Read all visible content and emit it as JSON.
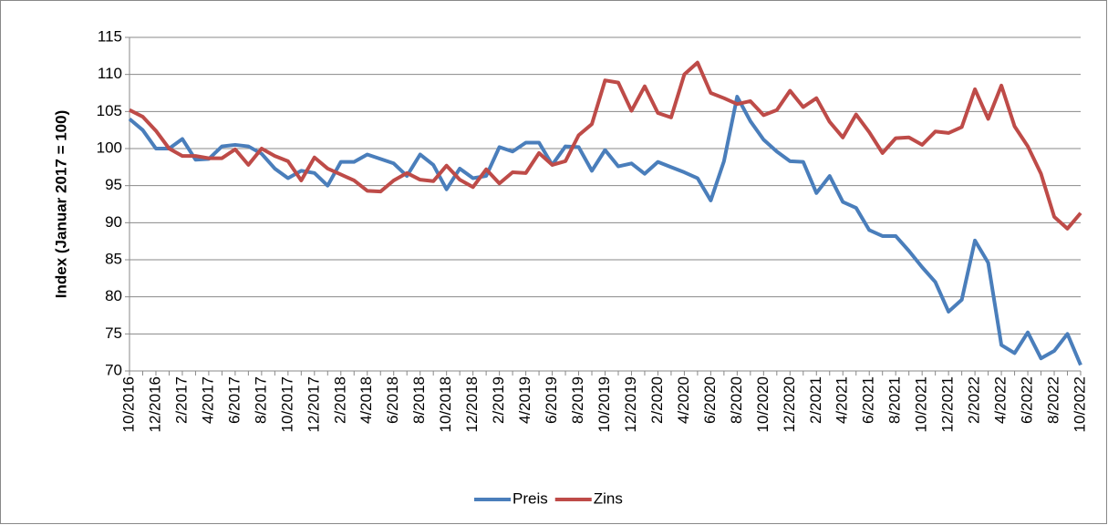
{
  "chart_data": {
    "type": "line",
    "y_label": "Index (Januar 2017 = 100)",
    "categories": [
      "10/2016",
      null,
      "12/2016",
      null,
      "2/2017",
      null,
      "4/2017",
      null,
      "6/2017",
      null,
      "8/2017",
      null,
      "10/2017",
      null,
      "12/2017",
      null,
      "2/2018",
      null,
      "4/2018",
      null,
      "6/2018",
      null,
      "8/2018",
      null,
      "10/2018",
      null,
      "12/2018",
      null,
      "2/2019",
      null,
      "4/2019",
      null,
      "6/2019",
      null,
      "8/2019",
      null,
      "10/2019",
      null,
      "12/2019",
      null,
      "2/2020",
      null,
      "4/2020",
      null,
      "6/2020",
      null,
      "8/2020",
      null,
      "10/2020",
      null,
      "12/2020",
      null,
      "2/2021",
      null,
      "4/2021",
      null,
      "6/2021",
      null,
      "8/2021",
      null,
      "10/2021",
      null,
      "12/2021",
      null,
      "2/2022",
      null,
      "4/2022",
      null,
      "6/2022",
      null,
      "8/2022",
      null,
      "10/2022"
    ],
    "series": [
      {
        "name": "Preis",
        "color": "#4a7ebb",
        "values": [
          104,
          102.5,
          100,
          100,
          101.3,
          98.5,
          98.6,
          100.3,
          100.5,
          100.3,
          99.3,
          97.3,
          96,
          97,
          96.7,
          95,
          98.2,
          98.2,
          99.2,
          98.6,
          98,
          96.3,
          99.2,
          97.8,
          94.5,
          97.3,
          96,
          96.3,
          100.2,
          99.6,
          100.8,
          100.8,
          97.8,
          100.3,
          100.2,
          97,
          99.8,
          97.6,
          98,
          96.6,
          98.2,
          97.5,
          96.8,
          96,
          93,
          98.3,
          107,
          103.7,
          101.2,
          99.6,
          98.3,
          98.2,
          94,
          96.3,
          92.8,
          92,
          89,
          88.2,
          88.2,
          86.2,
          84,
          82,
          78,
          79.6,
          87.6,
          84.6,
          73.5,
          72.4,
          75.2,
          71.7,
          72.7,
          75,
          70.8
        ]
      },
      {
        "name": "Zins",
        "color": "#be4b48",
        "values": [
          105.2,
          104.3,
          102.4,
          100,
          99,
          99,
          98.7,
          98.7,
          99.9,
          97.8,
          100,
          99,
          98.3,
          95.7,
          98.8,
          97.3,
          96.5,
          95.7,
          94.3,
          94.2,
          95.7,
          96.7,
          95.8,
          95.6,
          97.7,
          95.8,
          94.8,
          97.2,
          95.3,
          96.8,
          96.7,
          99.4,
          97.8,
          98.3,
          101.8,
          103.3,
          109.2,
          108.9,
          105.1,
          108.4,
          104.8,
          104.2,
          110,
          111.6,
          107.5,
          106.8,
          106,
          106.4,
          104.5,
          105.2,
          107.8,
          105.6,
          106.8,
          103.6,
          101.5,
          104.6,
          102.2,
          99.4,
          101.4,
          101.5,
          100.5,
          102.3,
          102.1,
          102.9,
          108,
          104,
          108.5,
          103,
          100.3,
          96.6,
          90.8,
          89.2,
          91.3
        ]
      }
    ],
    "ylim": [
      70,
      115
    ],
    "yticks": [
      70,
      75,
      80,
      85,
      90,
      95,
      100,
      105,
      110,
      115
    ],
    "grid": true,
    "legend": "bottom"
  }
}
